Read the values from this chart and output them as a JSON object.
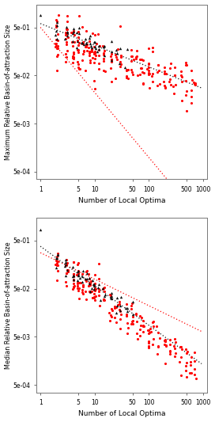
{
  "subplot1_ylabel": "Maximum Relative Basin-of-attraction Size",
  "subplot2_ylabel": "Median Relative Basin-of-attraction Size",
  "xlabel": "Number of Local Optima",
  "xlim": [
    0.85,
    1200
  ],
  "ylim": [
    0.00035,
    1.5
  ],
  "y_ticks": [
    0.0005,
    0.005,
    0.05,
    0.5
  ],
  "y_tick_labels": [
    "5e-04",
    "5e-03",
    "5e-02",
    "5e-01"
  ],
  "x_ticks": [
    1,
    5,
    10,
    50,
    100,
    500,
    1000
  ],
  "x_tick_labels": [
    "1",
    "5",
    "10",
    "50",
    "100",
    "500",
    "1000"
  ],
  "red_color": "#FF0000",
  "black_color": "#111111",
  "bg_color": "#FFFFFF",
  "dot_size": 5,
  "triangle_size": 6,
  "seed": 123
}
